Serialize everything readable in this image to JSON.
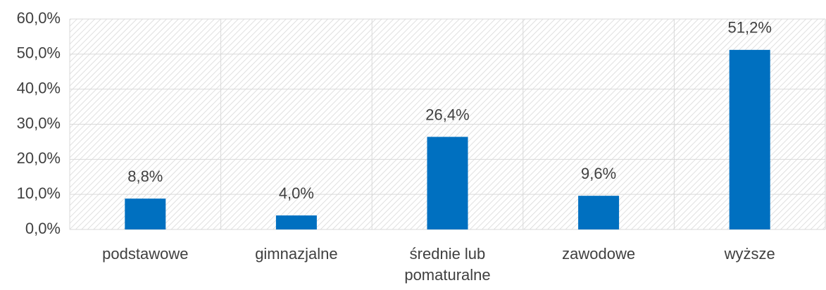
{
  "chart_data": {
    "type": "bar",
    "categories": [
      "podstawowe",
      "gimnazjalne",
      "średnie lub pomaturalne",
      "zawodowe",
      "wyższe"
    ],
    "values": [
      8.8,
      4.0,
      26.4,
      9.6,
      51.2
    ],
    "value_labels": [
      "8,8%",
      "4,0%",
      "26,4%",
      "9,6%",
      "51,2%"
    ],
    "color": "#0070c0",
    "ylim": [
      0,
      60
    ],
    "yticks": [
      {
        "value": 0,
        "label": "0,0%"
      },
      {
        "value": 10,
        "label": "10,0%"
      },
      {
        "value": 20,
        "label": "20,0%"
      },
      {
        "value": 30,
        "label": "30,0%"
      },
      {
        "value": 40,
        "label": "40,0%"
      },
      {
        "value": 50,
        "label": "50,0%"
      },
      {
        "value": 60,
        "label": "60,0%"
      }
    ],
    "grid": true
  }
}
